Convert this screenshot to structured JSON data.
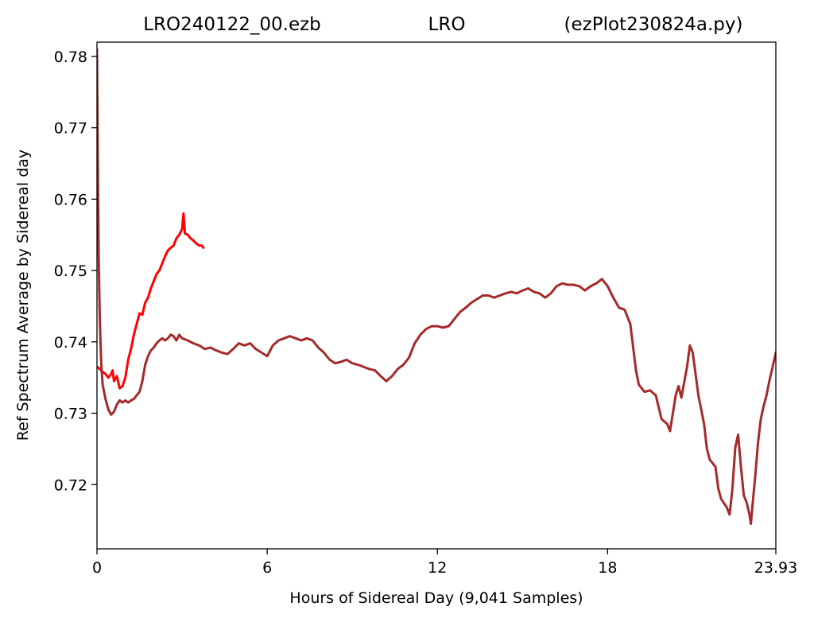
{
  "chart_data": {
    "type": "line",
    "title": {
      "left": "LRO240122_00.ezb",
      "center": "LRO",
      "right": "(ezPlot230824a.py)"
    },
    "xlabel": "Hours of Sidereal Day  (9,041 Samples)",
    "ylabel": "Ref Spectrum Average by Sidereal day",
    "xlim": [
      0,
      23.93
    ],
    "ylim": [
      0.711,
      0.782
    ],
    "x_ticks": [
      0,
      6,
      12,
      18,
      23.93
    ],
    "x_tick_labels": [
      "0",
      "6",
      "12",
      "18",
      "23.93"
    ],
    "y_ticks": [
      0.72,
      0.73,
      0.74,
      0.75,
      0.76,
      0.77,
      0.78
    ],
    "y_tick_labels": [
      "0.72",
      "0.73",
      "0.74",
      "0.75",
      "0.76",
      "0.77",
      "0.78"
    ],
    "grid": false,
    "series": [
      {
        "color": "#ff0000",
        "points": [
          [
            0.0,
            0.7365
          ],
          [
            0.1,
            0.7362
          ],
          [
            0.2,
            0.7358
          ],
          [
            0.3,
            0.7355
          ],
          [
            0.4,
            0.735
          ],
          [
            0.5,
            0.7355
          ],
          [
            0.55,
            0.736
          ],
          [
            0.6,
            0.7345
          ],
          [
            0.7,
            0.7352
          ],
          [
            0.8,
            0.7335
          ],
          [
            0.9,
            0.7338
          ],
          [
            1.0,
            0.735
          ],
          [
            1.1,
            0.7375
          ],
          [
            1.2,
            0.739
          ],
          [
            1.3,
            0.741
          ],
          [
            1.4,
            0.7425
          ],
          [
            1.5,
            0.744
          ],
          [
            1.6,
            0.7438
          ],
          [
            1.7,
            0.7455
          ],
          [
            1.8,
            0.7462
          ],
          [
            1.9,
            0.7475
          ],
          [
            2.0,
            0.7485
          ],
          [
            2.1,
            0.7495
          ],
          [
            2.2,
            0.75
          ],
          [
            2.3,
            0.751
          ],
          [
            2.4,
            0.752
          ],
          [
            2.5,
            0.7528
          ],
          [
            2.6,
            0.7532
          ],
          [
            2.7,
            0.7535
          ],
          [
            2.8,
            0.7545
          ],
          [
            2.9,
            0.755
          ],
          [
            3.0,
            0.7558
          ],
          [
            3.05,
            0.758
          ],
          [
            3.1,
            0.7552
          ],
          [
            3.2,
            0.755
          ],
          [
            3.3,
            0.7545
          ],
          [
            3.4,
            0.7542
          ],
          [
            3.5,
            0.7538
          ],
          [
            3.6,
            0.7535
          ],
          [
            3.7,
            0.7535
          ],
          [
            3.75,
            0.7532
          ]
        ]
      },
      {
        "color": "#a52a2a",
        "points": [
          [
            0.0,
            0.781
          ],
          [
            0.03,
            0.765
          ],
          [
            0.06,
            0.752
          ],
          [
            0.1,
            0.743
          ],
          [
            0.15,
            0.737
          ],
          [
            0.2,
            0.734
          ],
          [
            0.3,
            0.732
          ],
          [
            0.4,
            0.7305
          ],
          [
            0.5,
            0.7298
          ],
          [
            0.6,
            0.7302
          ],
          [
            0.7,
            0.7312
          ],
          [
            0.8,
            0.7318
          ],
          [
            0.9,
            0.7315
          ],
          [
            1.0,
            0.7318
          ],
          [
            1.1,
            0.7315
          ],
          [
            1.2,
            0.7318
          ],
          [
            1.3,
            0.732
          ],
          [
            1.4,
            0.7325
          ],
          [
            1.5,
            0.733
          ],
          [
            1.6,
            0.7345
          ],
          [
            1.7,
            0.7368
          ],
          [
            1.8,
            0.738
          ],
          [
            1.9,
            0.7388
          ],
          [
            2.0,
            0.7392
          ],
          [
            2.1,
            0.7398
          ],
          [
            2.2,
            0.7402
          ],
          [
            2.3,
            0.7405
          ],
          [
            2.4,
            0.7402
          ],
          [
            2.5,
            0.7405
          ],
          [
            2.6,
            0.741
          ],
          [
            2.7,
            0.7408
          ],
          [
            2.8,
            0.7402
          ],
          [
            2.9,
            0.741
          ],
          [
            3.0,
            0.7405
          ],
          [
            3.2,
            0.7402
          ],
          [
            3.4,
            0.7398
          ],
          [
            3.6,
            0.7395
          ],
          [
            3.8,
            0.739
          ],
          [
            4.0,
            0.7392
          ],
          [
            4.2,
            0.7388
          ],
          [
            4.4,
            0.7385
          ],
          [
            4.6,
            0.7383
          ],
          [
            4.8,
            0.739
          ],
          [
            5.0,
            0.7398
          ],
          [
            5.2,
            0.7395
          ],
          [
            5.4,
            0.7398
          ],
          [
            5.6,
            0.739
          ],
          [
            5.8,
            0.7385
          ],
          [
            6.0,
            0.738
          ],
          [
            6.2,
            0.7395
          ],
          [
            6.4,
            0.7402
          ],
          [
            6.6,
            0.7405
          ],
          [
            6.8,
            0.7408
          ],
          [
            7.0,
            0.7405
          ],
          [
            7.2,
            0.7402
          ],
          [
            7.4,
            0.7405
          ],
          [
            7.6,
            0.7402
          ],
          [
            7.8,
            0.7392
          ],
          [
            8.0,
            0.7385
          ],
          [
            8.2,
            0.7375
          ],
          [
            8.4,
            0.737
          ],
          [
            8.6,
            0.7372
          ],
          [
            8.8,
            0.7375
          ],
          [
            9.0,
            0.737
          ],
          [
            9.2,
            0.7368
          ],
          [
            9.4,
            0.7365
          ],
          [
            9.6,
            0.7362
          ],
          [
            9.8,
            0.736
          ],
          [
            10.0,
            0.7352
          ],
          [
            10.2,
            0.7345
          ],
          [
            10.4,
            0.7352
          ],
          [
            10.6,
            0.7362
          ],
          [
            10.8,
            0.7368
          ],
          [
            11.0,
            0.7378
          ],
          [
            11.2,
            0.7398
          ],
          [
            11.4,
            0.741
          ],
          [
            11.6,
            0.7418
          ],
          [
            11.8,
            0.7422
          ],
          [
            12.0,
            0.7422
          ],
          [
            12.2,
            0.742
          ],
          [
            12.4,
            0.7422
          ],
          [
            12.6,
            0.7432
          ],
          [
            12.8,
            0.7442
          ],
          [
            13.0,
            0.7448
          ],
          [
            13.2,
            0.7455
          ],
          [
            13.4,
            0.746
          ],
          [
            13.6,
            0.7465
          ],
          [
            13.8,
            0.7465
          ],
          [
            14.0,
            0.7462
          ],
          [
            14.2,
            0.7465
          ],
          [
            14.4,
            0.7468
          ],
          [
            14.6,
            0.747
          ],
          [
            14.8,
            0.7468
          ],
          [
            15.0,
            0.7472
          ],
          [
            15.2,
            0.7475
          ],
          [
            15.4,
            0.747
          ],
          [
            15.6,
            0.7468
          ],
          [
            15.8,
            0.7462
          ],
          [
            16.0,
            0.7468
          ],
          [
            16.2,
            0.7478
          ],
          [
            16.4,
            0.7482
          ],
          [
            16.6,
            0.748
          ],
          [
            16.8,
            0.748
          ],
          [
            17.0,
            0.7478
          ],
          [
            17.2,
            0.7472
          ],
          [
            17.4,
            0.7478
          ],
          [
            17.6,
            0.7482
          ],
          [
            17.8,
            0.7488
          ],
          [
            18.0,
            0.7478
          ],
          [
            18.2,
            0.7462
          ],
          [
            18.4,
            0.7448
          ],
          [
            18.6,
            0.7445
          ],
          [
            18.8,
            0.7425
          ],
          [
            19.0,
            0.736
          ],
          [
            19.1,
            0.734
          ],
          [
            19.3,
            0.733
          ],
          [
            19.5,
            0.7332
          ],
          [
            19.7,
            0.7325
          ],
          [
            19.9,
            0.7292
          ],
          [
            20.1,
            0.7285
          ],
          [
            20.2,
            0.7275
          ],
          [
            20.4,
            0.7325
          ],
          [
            20.5,
            0.7338
          ],
          [
            20.6,
            0.7322
          ],
          [
            20.8,
            0.7365
          ],
          [
            20.9,
            0.7395
          ],
          [
            21.0,
            0.7385
          ],
          [
            21.1,
            0.7355
          ],
          [
            21.2,
            0.7325
          ],
          [
            21.4,
            0.7285
          ],
          [
            21.5,
            0.725
          ],
          [
            21.6,
            0.7235
          ],
          [
            21.8,
            0.7225
          ],
          [
            21.9,
            0.7195
          ],
          [
            22.0,
            0.718
          ],
          [
            22.2,
            0.7168
          ],
          [
            22.3,
            0.7158
          ],
          [
            22.4,
            0.7195
          ],
          [
            22.5,
            0.7252
          ],
          [
            22.6,
            0.727
          ],
          [
            22.7,
            0.7225
          ],
          [
            22.8,
            0.7185
          ],
          [
            22.9,
            0.7175
          ],
          [
            23.0,
            0.7158
          ],
          [
            23.05,
            0.7145
          ],
          [
            23.1,
            0.7168
          ],
          [
            23.2,
            0.721
          ],
          [
            23.3,
            0.7258
          ],
          [
            23.4,
            0.7292
          ],
          [
            23.5,
            0.731
          ],
          [
            23.6,
            0.7325
          ],
          [
            23.7,
            0.7345
          ],
          [
            23.8,
            0.7362
          ],
          [
            23.93,
            0.7385
          ]
        ]
      }
    ]
  }
}
